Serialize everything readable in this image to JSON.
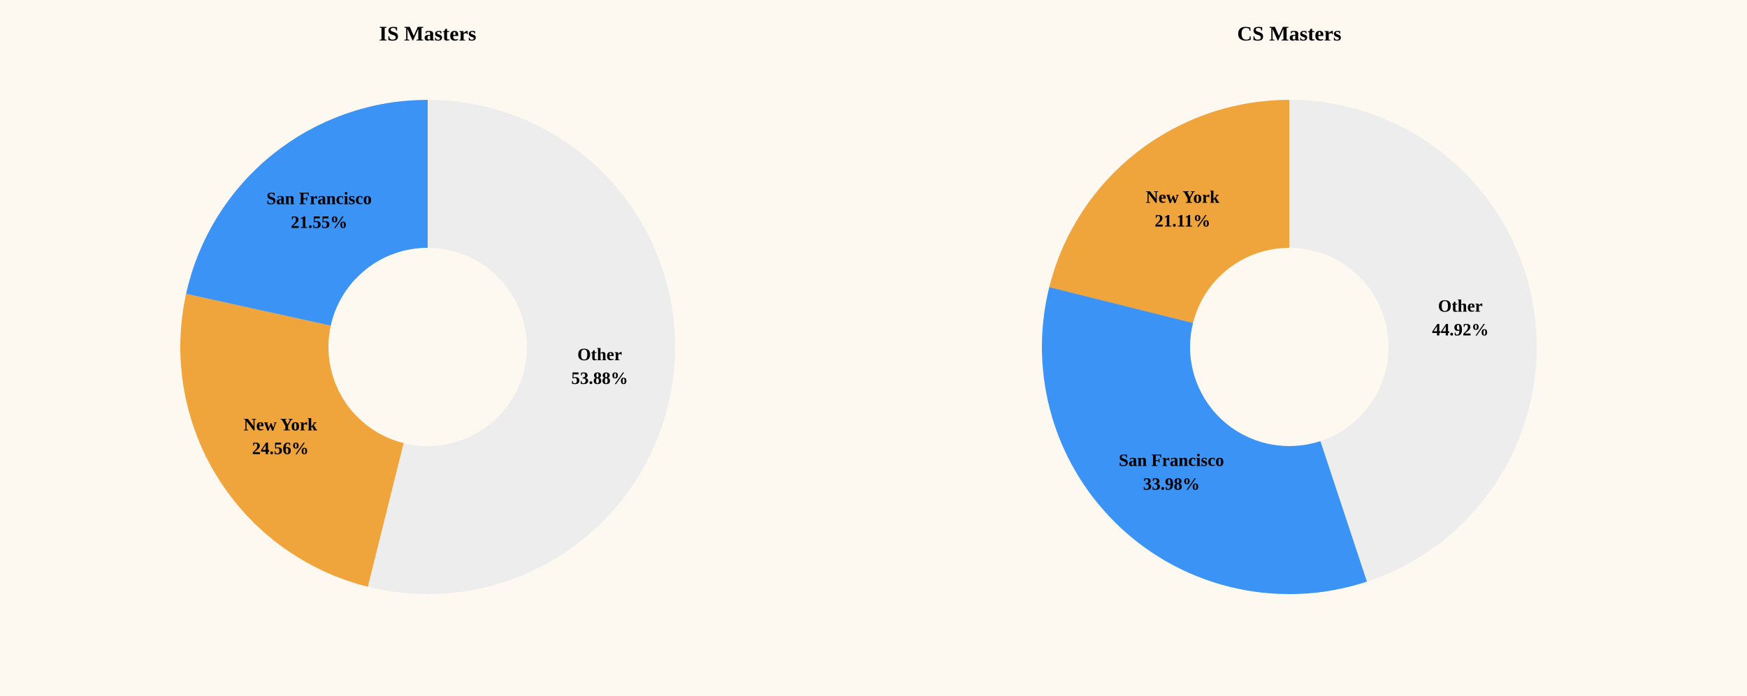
{
  "chart_data": [
    {
      "type": "donut",
      "title": "IS Masters",
      "categories": [
        "San Francisco",
        "New York",
        "Other"
      ],
      "values": [
        21.55,
        24.56,
        53.88
      ],
      "value_labels": [
        "21.55%",
        "24.56%",
        "53.88%"
      ],
      "colors": [
        "#3b94f5",
        "#f0a43c",
        "#ededed"
      ]
    },
    {
      "type": "donut",
      "title": "CS Masters",
      "categories": [
        "New York",
        "San Francisco",
        "Other"
      ],
      "values": [
        21.11,
        33.98,
        44.92
      ],
      "value_labels": [
        "21.11%",
        "33.98%",
        "44.92%"
      ],
      "colors": [
        "#f0a43c",
        "#3b94f5",
        "#ededed"
      ]
    }
  ]
}
